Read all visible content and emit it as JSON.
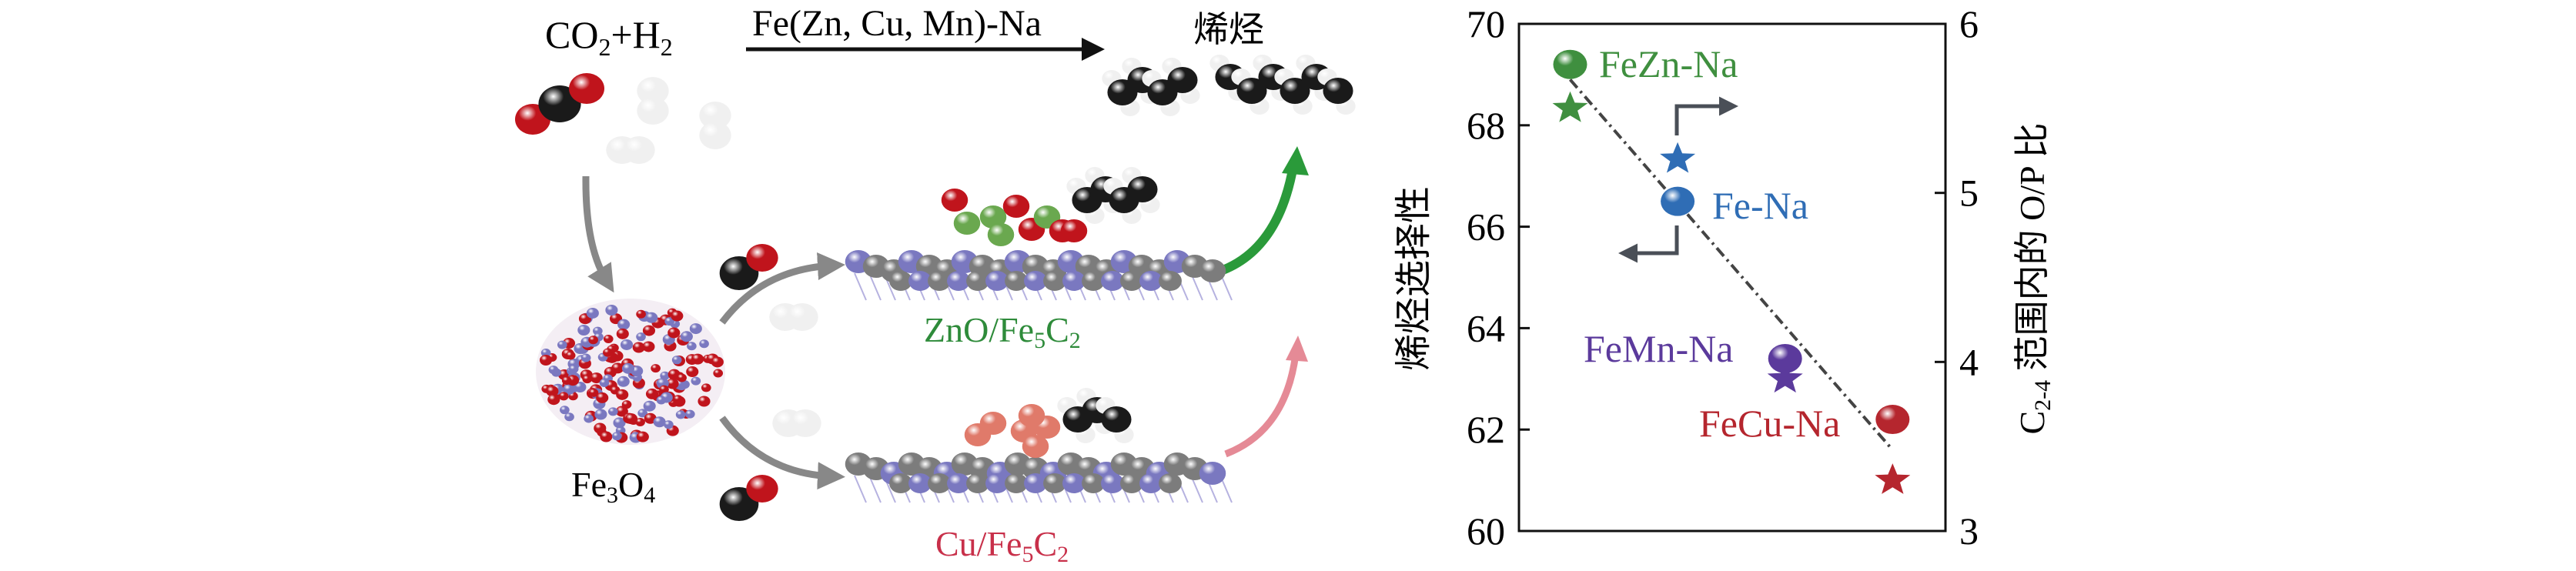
{
  "diagram": {
    "reactants_label": {
      "main": "CO",
      "sub1": "2",
      "plus": "+H",
      "sub2": "2"
    },
    "catalyst_label": "Fe(Zn, Cu, Mn)-Na",
    "product_label": "烯烃",
    "precursor_label": {
      "a": "Fe",
      "sub1": "3",
      "b": "O",
      "sub2": "4"
    },
    "upper_surface_label": {
      "a": "ZnO/Fe",
      "sub1": "5",
      "b": "C",
      "sub2": "2"
    },
    "lower_surface_label": {
      "a": "Cu/Fe",
      "sub1": "5",
      "b": "C",
      "sub2": "2"
    },
    "colors": {
      "zno": "#2e8b3a",
      "cu": "#c8304a",
      "oxygen": "#c0141c",
      "carbon": "#1a1a1a",
      "hydrogen": "#f0f0f0",
      "iron": "#7a78c0",
      "surface_carbon": "#7c7c7c",
      "zn": "#6aa84f",
      "cu_atom": "#e07a6a",
      "green_arrow": "#2a9a3a",
      "pink_arrow": "#e58a96"
    }
  },
  "chart_data": {
    "type": "scatter",
    "categories": [
      "FeZn-Na",
      "Fe-Na",
      "FeMn-Na",
      "FeCu-Na"
    ],
    "ylabel_left": "烯烃选择性",
    "ylabel_right": {
      "a": "C",
      "sub": "2-4",
      "b": " 范围内的 O/P 比"
    },
    "ylim_left": [
      60,
      70
    ],
    "ylim_right": [
      3,
      6
    ],
    "yticks_left": [
      "60",
      "62",
      "64",
      "66",
      "68",
      "70"
    ],
    "yticks_right": [
      "3",
      "4",
      "5",
      "6"
    ],
    "series": [
      {
        "marker": "circle",
        "axis": "left",
        "values": [
          69.2,
          66.5,
          63.4,
          62.2
        ]
      },
      {
        "marker": "star",
        "axis": "right",
        "values": [
          5.5,
          5.2,
          3.9,
          3.3
        ]
      }
    ],
    "point_colors": [
      "#3f8f3f",
      "#2f6db5",
      "#5b3a9c",
      "#b5262e"
    ],
    "trend_line": {
      "from": {
        "category": "FeZn-Na",
        "y_left": 68.9
      },
      "to": {
        "category": "FeCu-Na",
        "y_left": 61.6
      },
      "style": "dash-dot"
    },
    "grid": false
  }
}
